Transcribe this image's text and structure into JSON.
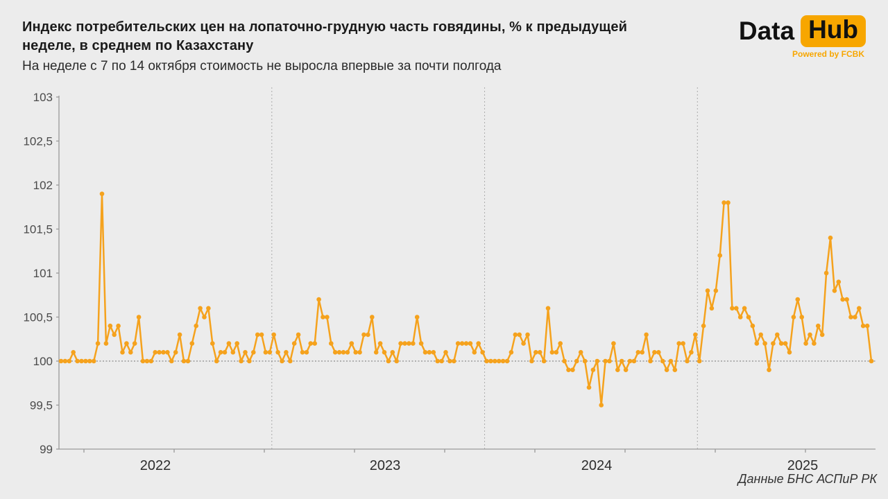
{
  "header": {
    "title_line1": "Индекс потребительских цен на лопаточно-грудную часть говядины, % к предыдущей",
    "title_line2": "неделе, в среднем по Казахстану",
    "subtitle": "На неделе с 7 по 14 октября стоимость не выросла впервые за почти полгода"
  },
  "logo": {
    "part1": "Data",
    "part2": "Hub",
    "tagline": "Powered by FCBK",
    "accent_color": "#F7A600"
  },
  "footer": {
    "source": "Данные БНС АСПиР РК"
  },
  "chart_data": {
    "type": "line",
    "title": "Индекс потребительских цен на лопаточно-грудную часть говядины, % к предыдущей неделе, в среднем по Казахстану",
    "subtitle": "На неделе с 7 по 14 октября стоимость не выросла впервые за почти полгода",
    "frequency": "weekly",
    "ylabel": "",
    "xlabel": "",
    "ylim": [
      99,
      103
    ],
    "ytick_step": 0.5,
    "ytick_labels": [
      "99",
      "99,5",
      "100",
      "100,5",
      "101",
      "101,5",
      "102",
      "102,5",
      "103"
    ],
    "baseline_value": 100,
    "line_color": "#F5A21D",
    "axis_color": "#9A9A9A",
    "grid_dash_color": "#ABABAB",
    "baseline_dash_color": "#6F6F6F",
    "legend_position": "none",
    "marker": "circle",
    "years": [
      {
        "label": "2022",
        "values": [
          100,
          100,
          100,
          100.1,
          100,
          100,
          100,
          100,
          100,
          100.2,
          101.9,
          100.2,
          100.4,
          100.3,
          100.4,
          100.1,
          100.2,
          100.1,
          100.2,
          100.5,
          100,
          100,
          100,
          100.1,
          100.1,
          100.1,
          100.1,
          100,
          100.1,
          100.3,
          100,
          100,
          100.2,
          100.4,
          100.6,
          100.5,
          100.6,
          100.2,
          100,
          100.1,
          100.1,
          100.2,
          100.1,
          100.2,
          100,
          100.1,
          100,
          100.1,
          100.3,
          100.3,
          100.1,
          100.1
        ]
      },
      {
        "label": "2023",
        "values": [
          100.3,
          100.1,
          100,
          100.1,
          100,
          100.2,
          100.3,
          100.1,
          100.1,
          100.2,
          100.2,
          100.7,
          100.5,
          100.5,
          100.2,
          100.1,
          100.1,
          100.1,
          100.1,
          100.2,
          100.1,
          100.1,
          100.3,
          100.3,
          100.5,
          100.1,
          100.2,
          100.1,
          100,
          100.1,
          100,
          100.2,
          100.2,
          100.2,
          100.2,
          100.5,
          100.2,
          100.1,
          100.1,
          100.1,
          100,
          100,
          100.1,
          100,
          100,
          100.2,
          100.2,
          100.2,
          100.2,
          100.1,
          100.2,
          100.1
        ]
      },
      {
        "label": "2024",
        "values": [
          100,
          100,
          100,
          100,
          100,
          100,
          100.1,
          100.3,
          100.3,
          100.2,
          100.3,
          100,
          100.1,
          100.1,
          100,
          100.6,
          100.1,
          100.1,
          100.2,
          100,
          99.9,
          99.9,
          100,
          100.1,
          100,
          99.7,
          99.9,
          100,
          99.5,
          100,
          100,
          100.2,
          99.9,
          100,
          99.9,
          100,
          100,
          100.1,
          100.1,
          100.3,
          100,
          100.1,
          100.1,
          100,
          99.9,
          100,
          99.9,
          100.2,
          100.2,
          100,
          100.1,
          100.3
        ]
      },
      {
        "label": "2025",
        "values": [
          100,
          100.4,
          100.8,
          100.6,
          100.8,
          101.2,
          101.8,
          101.8,
          100.6,
          100.6,
          100.5,
          100.6,
          100.5,
          100.4,
          100.2,
          100.3,
          100.2,
          99.9,
          100.2,
          100.3,
          100.2,
          100.2,
          100.1,
          100.5,
          100.7,
          100.5,
          100.2,
          100.3,
          100.2,
          100.4,
          100.3,
          101,
          101.4,
          100.8,
          100.9,
          100.7,
          100.7,
          100.5,
          100.5,
          100.6,
          100.4,
          100.4,
          100
        ]
      }
    ]
  }
}
